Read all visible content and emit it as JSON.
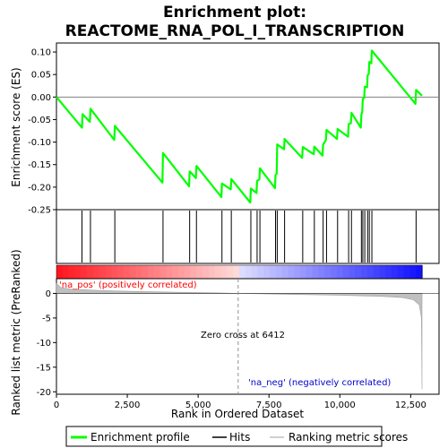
{
  "chart_data": {
    "type": "line",
    "title_lines": [
      "Enrichment plot:",
      "REACTOME_RNA_POL_I_TRANSCRIPTION"
    ],
    "xlabel": "Rank in Ordered Dataset",
    "ylabel_top": "Enrichment score (ES)",
    "ylabel_bottom": "Ranked list metric (PreRanked)",
    "xlim": [
      0,
      13500
    ],
    "x_ticks": [
      0,
      2500,
      5000,
      7500,
      10000,
      12500
    ],
    "x_tick_labels": [
      "0",
      "2,500",
      "5,000",
      "7,500",
      "10,000",
      "12,500"
    ],
    "es_ylim": [
      -0.25,
      0.12
    ],
    "es_ticks": [
      -0.25,
      -0.2,
      -0.15,
      -0.1,
      -0.05,
      0.0,
      0.05,
      0.1
    ],
    "es_tick_labels": [
      "-0.25",
      "-0.20",
      "-0.15",
      "-0.10",
      "-0.05",
      "0.00",
      "0.05",
      "0.10"
    ],
    "metric_ylim": [
      -20.5,
      3
    ],
    "metric_ticks": [
      0,
      -5,
      -10,
      -15,
      -20
    ],
    "metric_tick_labels": [
      "0",
      "-5",
      "-10",
      "-15",
      "-20"
    ],
    "es_profile": [
      [
        0,
        0.0
      ],
      [
        900,
        -0.068
      ],
      [
        920,
        -0.038
      ],
      [
        1180,
        -0.055
      ],
      [
        1200,
        -0.026
      ],
      [
        2040,
        -0.095
      ],
      [
        2060,
        -0.064
      ],
      [
        3740,
        -0.19
      ],
      [
        3760,
        -0.124
      ],
      [
        4680,
        -0.198
      ],
      [
        4700,
        -0.165
      ],
      [
        4920,
        -0.18
      ],
      [
        4940,
        -0.153
      ],
      [
        5820,
        -0.222
      ],
      [
        5840,
        -0.192
      ],
      [
        6150,
        -0.205
      ],
      [
        6170,
        -0.182
      ],
      [
        6840,
        -0.234
      ],
      [
        6860,
        -0.203
      ],
      [
        7060,
        -0.213
      ],
      [
        7080,
        -0.186
      ],
      [
        7160,
        -0.183
      ],
      [
        7180,
        -0.158
      ],
      [
        7710,
        -0.202
      ],
      [
        7730,
        -0.173
      ],
      [
        7770,
        -0.17
      ],
      [
        7790,
        -0.105
      ],
      [
        8030,
        -0.116
      ],
      [
        8050,
        -0.093
      ],
      [
        8670,
        -0.135
      ],
      [
        8690,
        -0.111
      ],
      [
        9080,
        -0.127
      ],
      [
        9100,
        -0.11
      ],
      [
        9390,
        -0.13
      ],
      [
        9410,
        -0.106
      ],
      [
        9510,
        -0.095
      ],
      [
        9530,
        -0.073
      ],
      [
        9900,
        -0.093
      ],
      [
        9920,
        -0.071
      ],
      [
        10290,
        -0.088
      ],
      [
        10310,
        -0.06
      ],
      [
        10390,
        -0.058
      ],
      [
        10410,
        -0.035
      ],
      [
        10740,
        -0.068
      ],
      [
        10760,
        -0.04
      ],
      [
        10790,
        -0.032
      ],
      [
        10810,
        -0.004
      ],
      [
        10860,
        -0.002
      ],
      [
        10880,
        0.023
      ],
      [
        10960,
        0.022
      ],
      [
        10980,
        0.048
      ],
      [
        11020,
        0.052
      ],
      [
        11040,
        0.078
      ],
      [
        11110,
        0.075
      ],
      [
        11130,
        0.103
      ],
      [
        12670,
        -0.015
      ],
      [
        12690,
        0.016
      ],
      [
        12900,
        0.003
      ]
    ],
    "hits": [
      900,
      1200,
      2060,
      3760,
      4700,
      4940,
      5840,
      6170,
      6860,
      7080,
      7180,
      7730,
      7790,
      8050,
      8690,
      9100,
      9410,
      9530,
      9920,
      10310,
      10410,
      10760,
      10810,
      10880,
      10980,
      11040,
      11130,
      12690
    ],
    "ranked_metric": [
      [
        0,
        2.0
      ],
      [
        150,
        1.2
      ],
      [
        500,
        0.9
      ],
      [
        1500,
        0.6
      ],
      [
        3000,
        0.38
      ],
      [
        4500,
        0.22
      ],
      [
        5500,
        0.12
      ],
      [
        6412,
        0.0
      ],
      [
        7500,
        -0.12
      ],
      [
        8500,
        -0.22
      ],
      [
        9500,
        -0.32
      ],
      [
        10500,
        -0.45
      ],
      [
        11500,
        -0.6
      ],
      [
        12200,
        -0.85
      ],
      [
        12600,
        -1.3
      ],
      [
        12800,
        -2.3
      ],
      [
        12880,
        -5.0
      ],
      [
        12900,
        -19.5
      ]
    ],
    "annotations": {
      "pos": "'na_pos' (positively correlated)",
      "neg": "'na_neg' (negatively correlated)",
      "zero_cross": "Zero cross at 6412"
    },
    "zero_cross_rank": 6412,
    "legend": {
      "enrichment": "Enrichment profile",
      "hits": "Hits",
      "metric": "Ranking metric scores"
    },
    "colors": {
      "profile": "#00ff00",
      "hits": "#000000",
      "metric": "#c0c0c0",
      "pos_label": "#ff0000",
      "neg_label": "#0000cc",
      "zero_line": "#909090"
    }
  }
}
